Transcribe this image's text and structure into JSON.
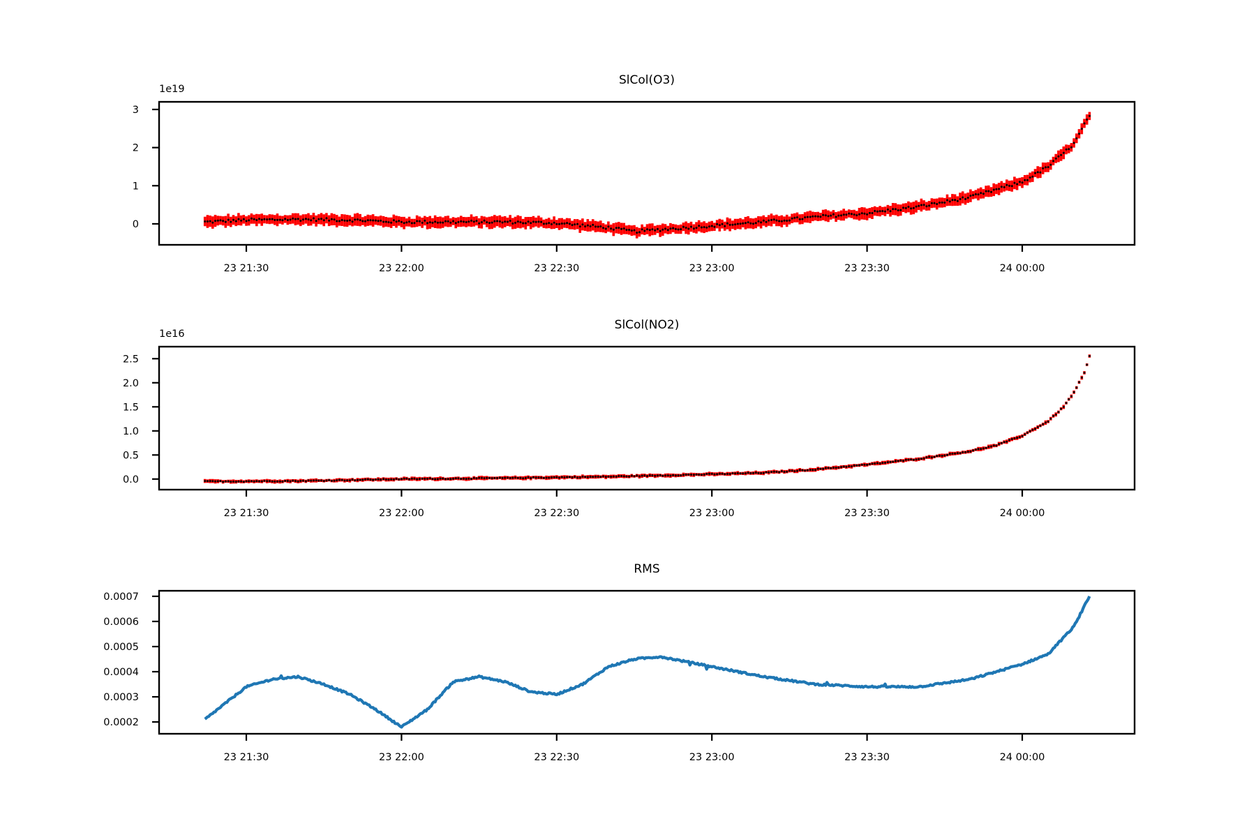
{
  "chart_data": [
    {
      "type": "scatter",
      "title": "SlCol(O3)",
      "offset_text": "1e19",
      "x_ticks": [
        "23 21:30",
        "23 22:00",
        "23 22:30",
        "23 23:00",
        "23 23:30",
        "24 00:00"
      ],
      "y_ticks": [
        "0",
        "1",
        "2",
        "3"
      ],
      "ylim": [
        -0.55,
        3.2
      ],
      "grid": false,
      "legend": "none",
      "error_color": "#ff0000",
      "marker_color": "#000000",
      "error_halfwidth": 0.13,
      "series": [
        {
          "x": [
            "21:22",
            "21:30",
            "21:40",
            "21:50",
            "22:00",
            "22:10",
            "22:20",
            "22:30",
            "22:40",
            "22:45",
            "22:50",
            "23:00",
            "23:10",
            "23:20",
            "23:30",
            "23:40",
            "23:50",
            "24:00",
            "24:05",
            "24:10",
            "24:13"
          ],
          "y": [
            0.05,
            0.1,
            0.12,
            0.1,
            0.05,
            0.05,
            0.05,
            0.02,
            -0.1,
            -0.2,
            -0.15,
            -0.05,
            0.05,
            0.18,
            0.28,
            0.45,
            0.7,
            1.1,
            1.5,
            2.1,
            2.85
          ]
        }
      ]
    },
    {
      "type": "scatter",
      "title": "SlCol(NO2)",
      "offset_text": "1e16",
      "x_ticks": [
        "23 21:30",
        "23 22:00",
        "23 22:30",
        "23 23:00",
        "23 23:30",
        "24 00:00"
      ],
      "y_ticks": [
        "0.0",
        "0.5",
        "1.0",
        "1.5",
        "2.0",
        "2.5"
      ],
      "ylim": [
        -0.22,
        2.75
      ],
      "grid": false,
      "legend": "none",
      "error_color": "#ff0000",
      "marker_color": "#000000",
      "error_halfwidth": 0.035,
      "series": [
        {
          "x": [
            "21:22",
            "21:40",
            "22:00",
            "22:20",
            "22:40",
            "23:00",
            "23:10",
            "23:20",
            "23:30",
            "23:40",
            "23:50",
            "23:55",
            "24:00",
            "24:05",
            "24:08",
            "24:10",
            "24:12",
            "24:13"
          ],
          "y": [
            -0.05,
            -0.04,
            0.0,
            0.02,
            0.05,
            0.1,
            0.13,
            0.2,
            0.3,
            0.42,
            0.58,
            0.7,
            0.9,
            1.2,
            1.5,
            1.8,
            2.2,
            2.55
          ]
        }
      ]
    },
    {
      "type": "line",
      "title": "RMS",
      "x_ticks": [
        "23 21:30",
        "23 22:00",
        "23 22:30",
        "23 23:00",
        "23 23:30",
        "24 00:00"
      ],
      "y_ticks": [
        "0.0002",
        "0.0003",
        "0.0004",
        "0.0005",
        "0.0006",
        "0.0007"
      ],
      "ylim": [
        0.000153,
        0.000722
      ],
      "grid": false,
      "legend": "none",
      "line_color": "#1f77b4",
      "series": [
        {
          "x": [
            "21:22",
            "21:30",
            "21:35",
            "21:40",
            "21:45",
            "21:50",
            "21:55",
            "22:00",
            "22:05",
            "22:10",
            "22:15",
            "22:20",
            "22:25",
            "22:30",
            "22:35",
            "22:40",
            "22:45",
            "22:50",
            "22:55",
            "23:00",
            "23:10",
            "23:20",
            "23:30",
            "23:40",
            "23:50",
            "24:00",
            "24:05",
            "24:10",
            "24:13"
          ],
          "y": [
            0.00021,
            0.00034,
            0.00037,
            0.00038,
            0.00035,
            0.00031,
            0.00025,
            0.00018,
            0.00025,
            0.00036,
            0.00038,
            0.00036,
            0.00032,
            0.00031,
            0.00035,
            0.00042,
            0.00045,
            0.00046,
            0.00044,
            0.00042,
            0.00038,
            0.00035,
            0.00034,
            0.00034,
            0.00037,
            0.00043,
            0.00047,
            0.00058,
            0.0007
          ]
        }
      ]
    }
  ]
}
